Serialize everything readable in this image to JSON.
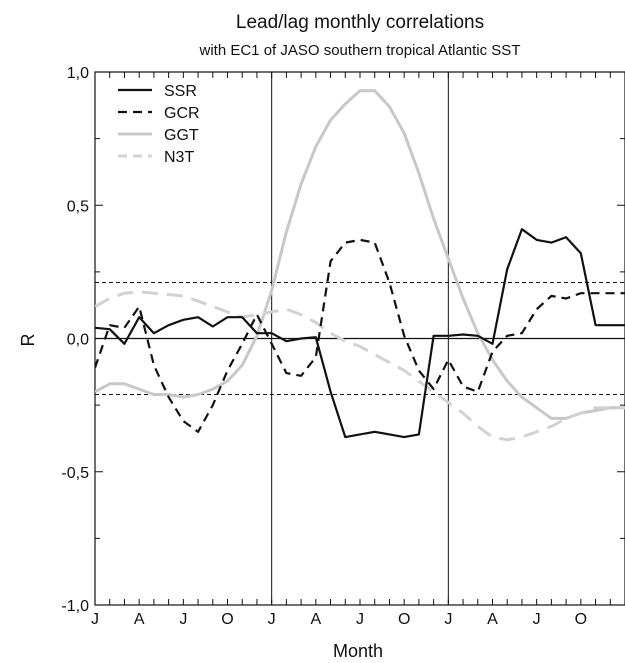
{
  "chart_data": {
    "type": "line",
    "title": "Lead/lag monthly correlations",
    "subtitle": "with EC1 of JASO southern tropical Atlantic SST",
    "xlabel": "Month",
    "ylabel": "R",
    "ylim": [
      -1.0,
      1.0
    ],
    "xlim": [
      0,
      36
    ],
    "y_ticks": [
      {
        "value": 1.0,
        "label": "1,0"
      },
      {
        "value": 0.5,
        "label": "0,5"
      },
      {
        "value": 0.0,
        "label": "0,0"
      },
      {
        "value": -0.5,
        "label": "-0,5"
      },
      {
        "value": -1.0,
        "label": "-1,0"
      }
    ],
    "x_tick_labels": [
      {
        "month": 0,
        "label": "J"
      },
      {
        "month": 3,
        "label": "A"
      },
      {
        "month": 6,
        "label": "J"
      },
      {
        "month": 9,
        "label": "O"
      },
      {
        "month": 12,
        "label": "J"
      },
      {
        "month": 15,
        "label": "A"
      },
      {
        "month": 18,
        "label": "J"
      },
      {
        "month": 21,
        "label": "O"
      },
      {
        "month": 24,
        "label": "J"
      },
      {
        "month": 27,
        "label": "A"
      },
      {
        "month": 30,
        "label": "J"
      },
      {
        "month": 33,
        "label": "O"
      }
    ],
    "year_boundaries": [
      12,
      24
    ],
    "significance_levels": [
      0.21,
      -0.21
    ],
    "grid": false,
    "legend_position": "top-left",
    "series": [
      {
        "name": "SSR",
        "color": "#111111",
        "dash": "solid",
        "x": [
          0,
          1,
          2,
          3,
          4,
          5,
          6,
          7,
          8,
          9,
          10,
          11,
          12,
          13,
          14,
          15,
          16,
          17,
          18,
          19,
          20,
          21,
          22,
          23,
          24,
          25,
          26,
          27,
          28,
          29,
          30,
          31,
          32,
          33,
          34,
          35,
          36
        ],
        "y": [
          0.04,
          0.035,
          -0.02,
          0.08,
          0.02,
          0.05,
          0.07,
          0.08,
          0.045,
          0.08,
          0.08,
          0.02,
          0.02,
          -0.01,
          0.0,
          0.005,
          -0.2,
          -0.37,
          -0.36,
          -0.35,
          -0.36,
          -0.37,
          -0.36,
          0.01,
          0.01,
          0.015,
          0.01,
          -0.02,
          0.26,
          0.41,
          0.37,
          0.36,
          0.38,
          0.32,
          0.05,
          0.05,
          0.05
        ]
      },
      {
        "name": "GCR",
        "color": "#111111",
        "dash": "dashed",
        "x": [
          0,
          1,
          2,
          3,
          4,
          5,
          6,
          7,
          8,
          9,
          10,
          11,
          12,
          13,
          14,
          15,
          16,
          17,
          18,
          19,
          20,
          21,
          22,
          23,
          24,
          25,
          26,
          27,
          28,
          29,
          30,
          31,
          32,
          33,
          34,
          35,
          36
        ],
        "y": [
          -0.11,
          0.05,
          0.04,
          0.12,
          -0.1,
          -0.22,
          -0.31,
          -0.35,
          -0.25,
          -0.12,
          -0.02,
          0.09,
          -0.02,
          -0.13,
          -0.14,
          -0.07,
          0.29,
          0.36,
          0.37,
          0.36,
          0.21,
          0.01,
          -0.12,
          -0.19,
          -0.08,
          -0.18,
          -0.2,
          -0.05,
          0.01,
          0.02,
          0.11,
          0.16,
          0.15,
          0.17,
          0.17,
          0.17,
          0.17
        ]
      },
      {
        "name": "GGT",
        "color": "#c8c8c8",
        "dash": "solid",
        "x": [
          0,
          1,
          2,
          3,
          4,
          5,
          6,
          7,
          8,
          9,
          10,
          11,
          12,
          13,
          14,
          15,
          16,
          17,
          18,
          19,
          20,
          21,
          22,
          23,
          24,
          25,
          26,
          27,
          28,
          29,
          30,
          31,
          32,
          33,
          34,
          35,
          36
        ],
        "y": [
          -0.2,
          -0.17,
          -0.17,
          -0.19,
          -0.21,
          -0.21,
          -0.22,
          -0.21,
          -0.19,
          -0.16,
          -0.1,
          0.01,
          0.18,
          0.4,
          0.58,
          0.72,
          0.82,
          0.88,
          0.93,
          0.93,
          0.87,
          0.77,
          0.62,
          0.45,
          0.3,
          0.15,
          0.02,
          -0.08,
          -0.16,
          -0.22,
          -0.26,
          -0.3,
          -0.3,
          -0.28,
          -0.27,
          -0.26,
          -0.26
        ]
      },
      {
        "name": "N3T",
        "color": "#d2d2d2",
        "dash": "dashed",
        "x": [
          0,
          1,
          2,
          3,
          4,
          5,
          6,
          7,
          8,
          9,
          10,
          11,
          12,
          13,
          14,
          15,
          16,
          17,
          18,
          19,
          20,
          21,
          22,
          23,
          24,
          25,
          26,
          27,
          28,
          29,
          30,
          31,
          32,
          33,
          34,
          35,
          36
        ],
        "y": [
          0.12,
          0.15,
          0.17,
          0.175,
          0.17,
          0.165,
          0.16,
          0.14,
          0.12,
          0.1,
          0.08,
          0.09,
          0.1,
          0.11,
          0.09,
          0.06,
          0.02,
          -0.01,
          -0.03,
          -0.06,
          -0.09,
          -0.12,
          -0.16,
          -0.2,
          -0.24,
          -0.28,
          -0.33,
          -0.37,
          -0.38,
          -0.37,
          -0.35,
          -0.33,
          -0.3,
          -0.28,
          -0.26,
          -0.26,
          -0.26
        ]
      }
    ]
  }
}
